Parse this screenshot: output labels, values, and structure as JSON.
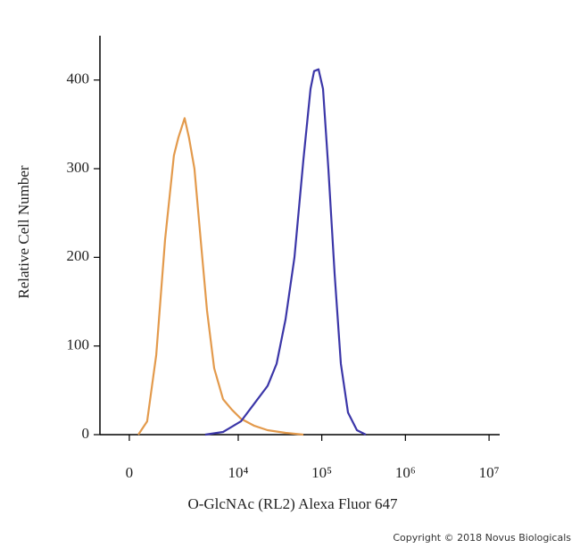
{
  "chart_data": {
    "type": "line",
    "xlabel": "O-GlcNAc (RL2) Alexa Fluor 647",
    "ylabel": "Relative Cell Number",
    "copyright": "Copyright © 2018 Novus Biologicals",
    "xscale": "biexponential",
    "xlim": [
      -900,
      13400000
    ],
    "ylim": [
      0,
      450
    ],
    "xticks": [
      0,
      {
        "value": 10000,
        "label": "10⁴"
      },
      {
        "value": 100000,
        "label": "10⁵"
      },
      {
        "value": 1000000,
        "label": "10⁶"
      },
      {
        "value": 10000000,
        "label": "10⁷"
      }
    ],
    "yticks": [
      0,
      100,
      200,
      300,
      400
    ],
    "series": [
      {
        "color": "#e39a4c",
        "x": [
          250,
          510,
          810,
          1150,
          1560,
          1800,
          2180,
          2490,
          2920,
          3500,
          4190,
          5120,
          6570,
          8410,
          10770,
          15600,
          22500,
          36900,
          60300
        ],
        "values": [
          0,
          15,
          90,
          220,
          315,
          335,
          357,
          335,
          300,
          220,
          140,
          75,
          40,
          28,
          18,
          10,
          5,
          2,
          0
        ]
      },
      {
        "color": "#3b36a8",
        "x": [
          3970,
          6570,
          10770,
          15600,
          22500,
          28800,
          36900,
          47100,
          60300,
          73300,
          81000,
          91500,
          103500,
          120000,
          142600,
          169000,
          206000,
          263000,
          336000
        ],
        "values": [
          0,
          3,
          15,
          35,
          55,
          80,
          130,
          200,
          310,
          390,
          410,
          412,
          390,
          300,
          180,
          80,
          25,
          5,
          0
        ]
      }
    ]
  }
}
